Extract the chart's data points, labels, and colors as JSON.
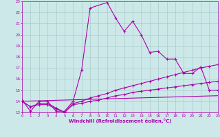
{
  "xlabel": "Windchill (Refroidissement éolien,°C)",
  "xlim": [
    0,
    23
  ],
  "ylim": [
    13,
    23
  ],
  "xticks": [
    0,
    1,
    2,
    3,
    4,
    5,
    6,
    7,
    8,
    9,
    10,
    11,
    12,
    13,
    14,
    15,
    16,
    17,
    18,
    19,
    20,
    21,
    22,
    23
  ],
  "yticks": [
    13,
    14,
    15,
    16,
    17,
    18,
    19,
    20,
    21,
    22,
    23
  ],
  "bg_color": "#cde8e8",
  "line_color": "#aa00aa",
  "grid_color": "#aacccc",
  "line1_x": [
    0,
    1,
    2,
    3,
    4,
    5,
    6,
    7,
    8,
    10,
    11,
    12,
    13,
    14,
    15,
    16,
    17,
    18,
    19,
    20,
    21,
    22,
    23
  ],
  "line1_y": [
    14.1,
    13.1,
    14.0,
    14.0,
    13.1,
    13.1,
    14.0,
    16.8,
    22.4,
    22.9,
    21.5,
    20.3,
    21.2,
    20.0,
    18.4,
    18.5,
    17.8,
    17.8,
    16.5,
    16.5,
    17.1,
    15.0,
    15.0
  ],
  "line2_x": [
    0,
    1,
    2,
    3,
    4,
    5,
    6,
    7,
    8,
    9,
    10,
    11,
    12,
    13,
    14,
    15,
    16,
    17,
    18,
    19,
    20,
    21,
    22,
    23
  ],
  "line2_y": [
    14.0,
    13.5,
    13.8,
    13.8,
    13.4,
    13.0,
    13.8,
    14.0,
    14.3,
    14.5,
    14.7,
    15.0,
    15.2,
    15.4,
    15.6,
    15.8,
    16.0,
    16.2,
    16.4,
    16.6,
    16.8,
    17.0,
    17.15,
    17.3
  ],
  "line3_x": [
    0,
    1,
    2,
    3,
    4,
    5,
    6,
    7,
    8,
    9,
    10,
    11,
    12,
    13,
    14,
    15,
    16,
    17,
    18,
    19,
    20,
    21,
    22,
    23
  ],
  "line3_y": [
    14.0,
    13.5,
    13.7,
    13.7,
    13.3,
    13.0,
    13.7,
    13.8,
    14.0,
    14.1,
    14.3,
    14.5,
    14.6,
    14.8,
    14.9,
    15.0,
    15.1,
    15.2,
    15.3,
    15.4,
    15.5,
    15.6,
    15.7,
    15.8
  ],
  "line4_x": [
    0,
    23
  ],
  "line4_y": [
    14.0,
    14.5
  ]
}
